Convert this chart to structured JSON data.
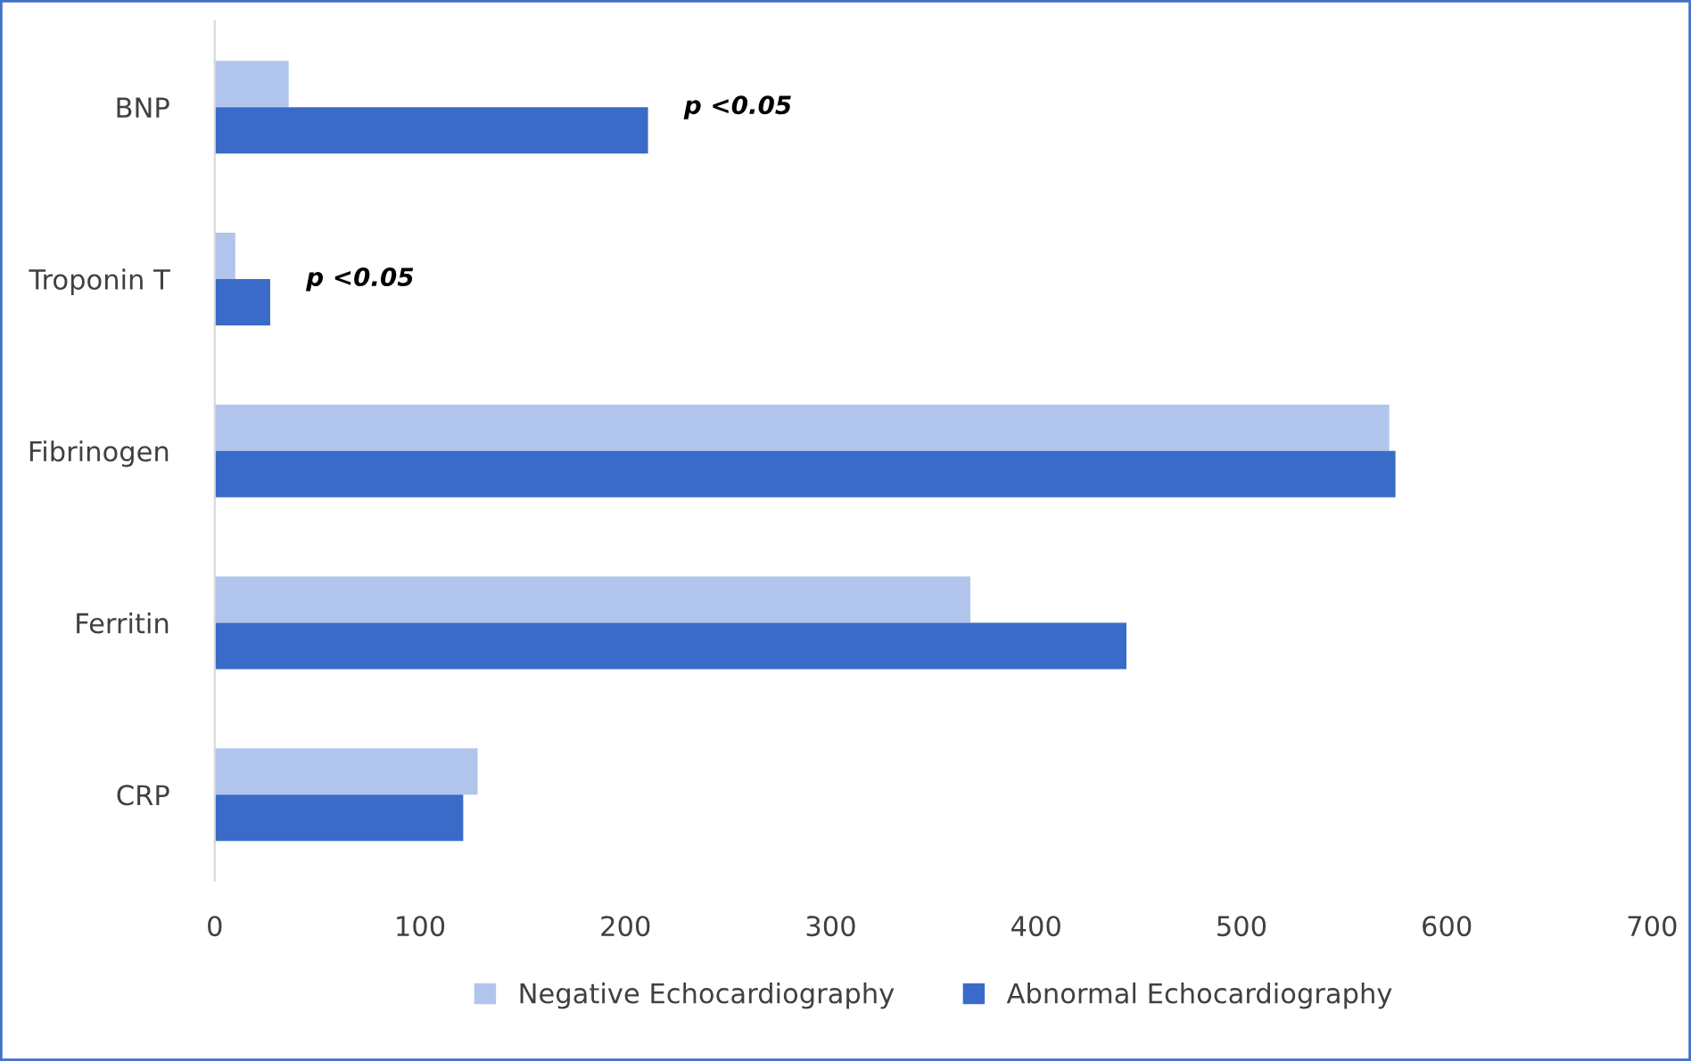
{
  "chart_data": {
    "type": "bar",
    "orientation": "horizontal",
    "categories": [
      "BNP",
      "Troponin T",
      "Fibrinogen",
      "Ferritin",
      "CRP"
    ],
    "series": [
      {
        "name": "Negative Echocardiography",
        "color": "#b1c5ec",
        "values": [
          36,
          10,
          572,
          368,
          128
        ]
      },
      {
        "name": "Abnormal Echocardiography",
        "color": "#3b6bc8",
        "values": [
          211,
          27,
          575,
          444,
          121
        ]
      }
    ],
    "xlim": [
      0,
      700
    ],
    "xticks": [
      0,
      100,
      200,
      300,
      400,
      500,
      600,
      700
    ],
    "grid": false,
    "legend": "bottom",
    "annotations": [
      "p <0.05",
      "p <0.05"
    ]
  }
}
